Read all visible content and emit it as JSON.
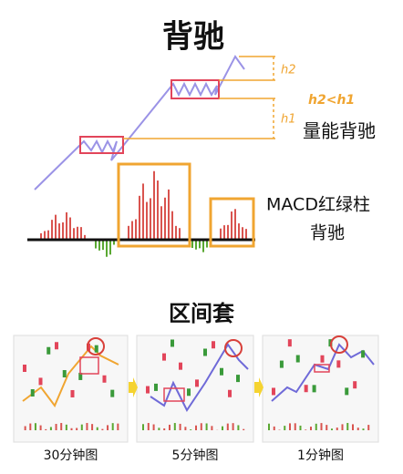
{
  "header": {
    "title": "背驰"
  },
  "annotations": {
    "h2": "h2",
    "compare": "h2<h1",
    "h1": "h1",
    "volume": "量能背驰",
    "macd": "MACD红绿柱",
    "macd_sub": "背驰"
  },
  "section": {
    "title": "区间套",
    "panels": [
      {
        "label": "30分钟图"
      },
      {
        "label": "5分钟图"
      },
      {
        "label": "1分钟图"
      }
    ]
  }
}
